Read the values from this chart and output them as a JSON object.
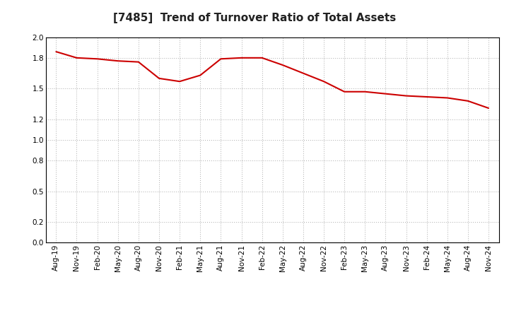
{
  "title": "[7485]  Trend of Turnover Ratio of Total Assets",
  "line_color": "#cc0000",
  "background_color": "#ffffff",
  "grid_color": "#aaaaaa",
  "ylim": [
    0.0,
    2.0
  ],
  "yticks": [
    0.0,
    0.2,
    0.5,
    0.8,
    1.0,
    1.2,
    1.5,
    1.8,
    2.0
  ],
  "x_labels": [
    "Aug-19",
    "Nov-19",
    "Feb-20",
    "May-20",
    "Aug-20",
    "Nov-20",
    "Feb-21",
    "May-21",
    "Aug-21",
    "Nov-21",
    "Feb-22",
    "May-22",
    "Aug-22",
    "Nov-22",
    "Feb-23",
    "May-23",
    "Aug-23",
    "Nov-23",
    "Feb-24",
    "May-24",
    "Aug-24",
    "Nov-24"
  ],
  "values": [
    1.86,
    1.8,
    1.79,
    1.77,
    1.76,
    1.6,
    1.57,
    1.63,
    1.79,
    1.8,
    1.8,
    1.73,
    1.65,
    1.57,
    1.47,
    1.47,
    1.45,
    1.43,
    1.42,
    1.41,
    1.38,
    1.31
  ]
}
